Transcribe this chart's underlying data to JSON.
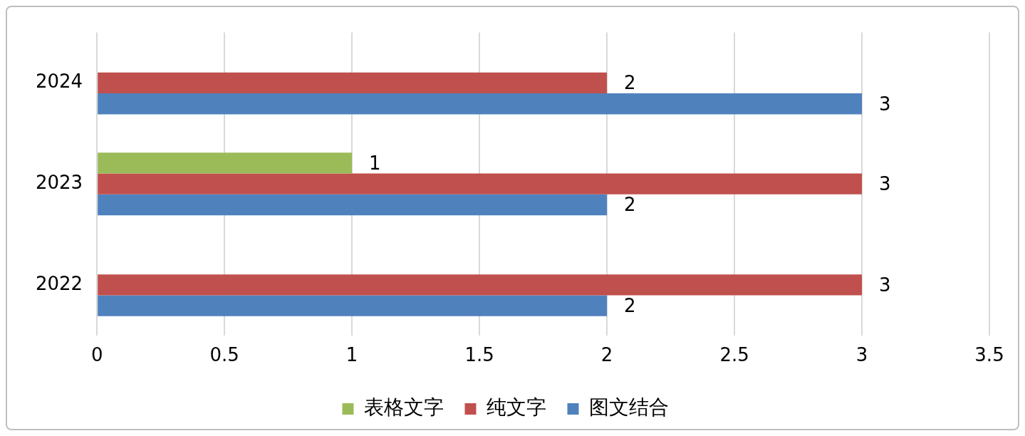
{
  "chart_data": {
    "type": "bar",
    "orientation": "horizontal",
    "categories": [
      "2024",
      "2023",
      "2022"
    ],
    "series": [
      {
        "name": "表格文字",
        "color": "#9bbb59",
        "values": [
          null,
          1,
          null
        ]
      },
      {
        "name": "纯文字",
        "color": "#c0504d",
        "values": [
          2,
          3,
          3
        ]
      },
      {
        "name": "图文结合",
        "color": "#4f81bd",
        "values": [
          3,
          2,
          2
        ]
      }
    ],
    "xlim": [
      0,
      3.5
    ],
    "xticks": [
      0,
      0.5,
      1,
      1.5,
      2,
      2.5,
      3,
      3.5
    ],
    "grid": "x",
    "legend": "bottom",
    "data_labels": true
  }
}
